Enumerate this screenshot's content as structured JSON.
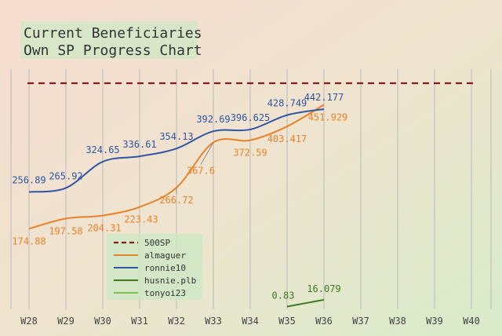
{
  "chart_data": {
    "type": "line",
    "title_lines": [
      "Current Beneficiaries",
      "Own SP Progress Chart"
    ],
    "categories": [
      "W28",
      "W29",
      "W30",
      "W31",
      "W32",
      "W33",
      "W34",
      "W35",
      "W36",
      "W37",
      "W38",
      "W39",
      "W40"
    ],
    "ylim": [
      0,
      540
    ],
    "grid": "vertical",
    "legend_position": "bottom-left",
    "reference_line": {
      "name": "500SP",
      "value": 500,
      "color": "#8b1a1a",
      "style": "dashed"
    },
    "series": [
      {
        "name": "almaguer",
        "color": "#e8822a",
        "values": [
          174.88,
          197.58,
          204.31,
          223.43,
          266.72,
          367.6,
          372.59,
          403.417,
          451.929,
          null,
          null,
          null,
          null
        ],
        "labels": [
          "174.88",
          "197.58",
          "204.31",
          "223.43",
          "266.72",
          "367.6",
          "372.59",
          "403.417",
          "451.929",
          null,
          null,
          null,
          null
        ]
      },
      {
        "name": "ronnie10",
        "color": "#2f55a4",
        "values": [
          256.89,
          265.92,
          324.65,
          336.61,
          354.13,
          392.69,
          396.625,
          428.749,
          442.177,
          null,
          null,
          null,
          null
        ],
        "labels": [
          "256.89",
          "265.92",
          "324.65",
          "336.61",
          "354.13",
          "392.69",
          "396.625",
          "428.749",
          "442.177",
          null,
          null,
          null,
          null
        ]
      },
      {
        "name": "husnie.plb",
        "color": "#3f7a22",
        "values": [
          null,
          null,
          null,
          null,
          null,
          null,
          null,
          0.83,
          16.079,
          null,
          null,
          null,
          null
        ],
        "labels": [
          null,
          null,
          null,
          null,
          null,
          null,
          null,
          "0.83",
          "16.079",
          null,
          null,
          null,
          null
        ]
      },
      {
        "name": "tonyoi23",
        "color": "#7fbf50",
        "values": [
          null,
          null,
          null,
          null,
          null,
          null,
          null,
          null,
          null,
          null,
          null,
          null,
          null
        ],
        "labels": []
      }
    ]
  }
}
